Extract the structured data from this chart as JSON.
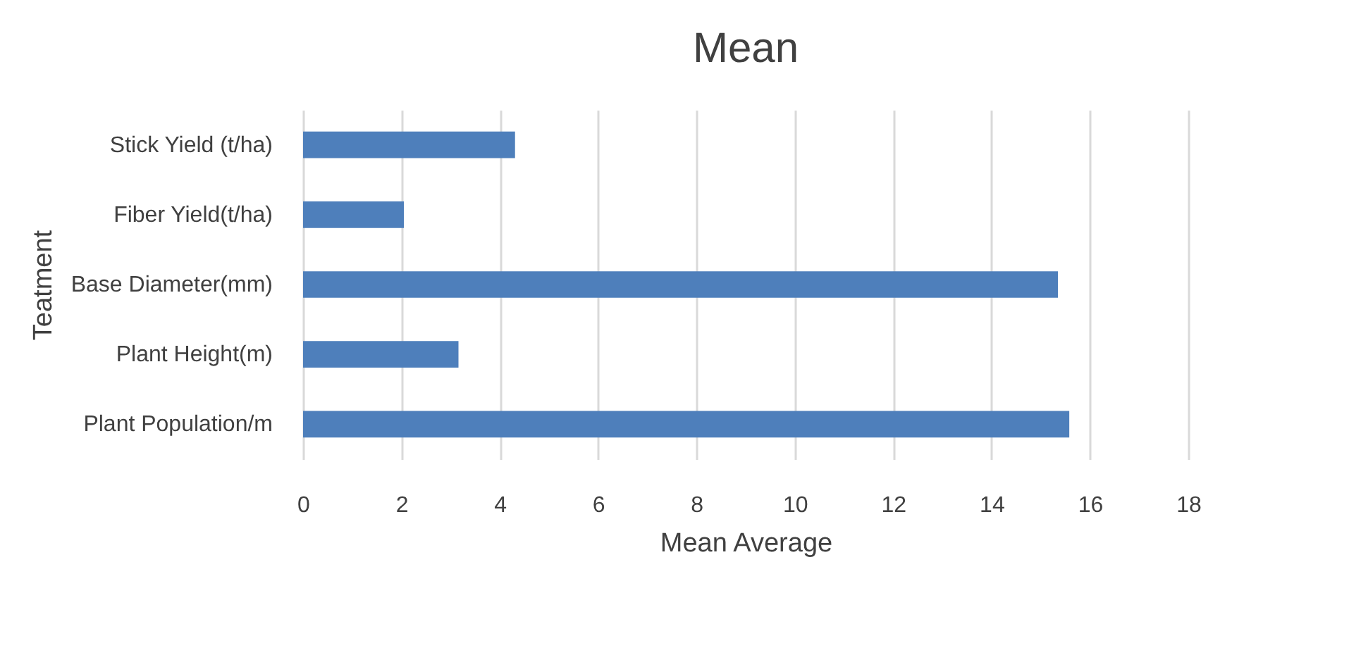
{
  "chart_data": {
    "type": "bar",
    "orientation": "horizontal",
    "title": "Mean",
    "xlabel": "Mean Average",
    "ylabel": "Teatment",
    "categories": [
      "Stick Yield (t/ha)",
      "Fiber Yield(t/ha)",
      "Base Diameter(mm)",
      "Plant Height(m)",
      "Plant Population/m"
    ],
    "values": [
      4.31,
      2.05,
      15.35,
      3.16,
      15.58
    ],
    "color": "#4e7fbb",
    "xlim": [
      0,
      18
    ],
    "xticks": [
      0,
      2,
      4,
      6,
      8,
      10,
      12,
      14,
      16,
      18
    ],
    "grid": "x"
  }
}
